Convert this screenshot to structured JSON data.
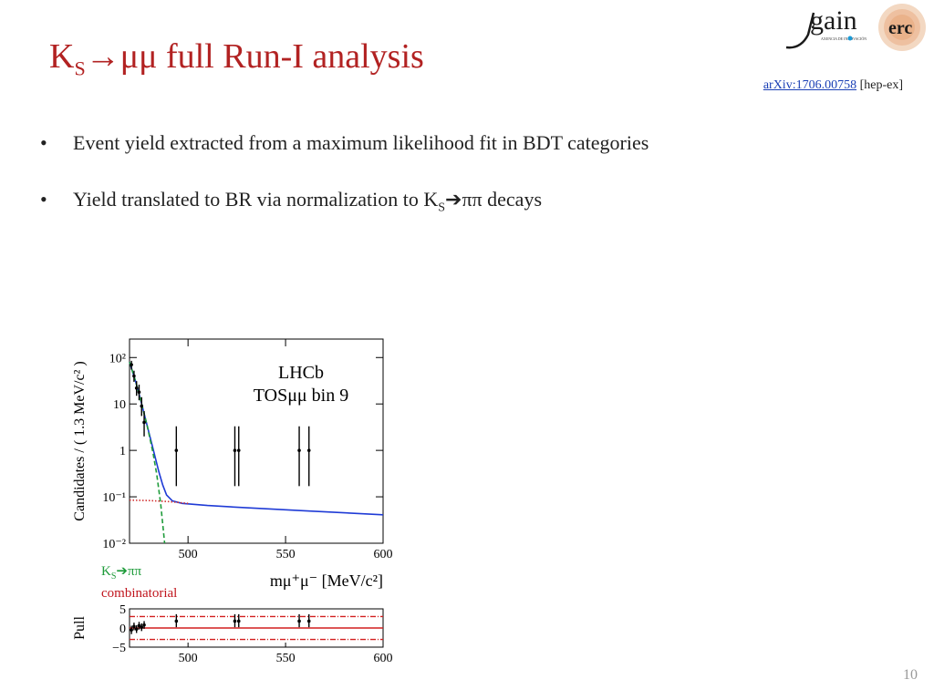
{
  "slide": {
    "title_main": "K",
    "title_sub": "S",
    "title_rest": "→μμ full Run-I analysis",
    "ref_link": "arXiv:1706.00758",
    "ref_suffix": " [hep-ex]",
    "bullets": [
      {
        "text": "Event yield extracted from a maximum likelihood fit in BDT categories"
      },
      {
        "text_pre": "Yield translated to BR via normalization to K",
        "text_sub": "S",
        "text_post": "ππ decays"
      }
    ],
    "page_number": "10"
  },
  "logo": {
    "text_main": "gain",
    "text_small": "AXENCIA DE INNOVACIÓN",
    "badge": "erc"
  },
  "legend": {
    "ks_main": "K",
    "ks_sub": "S",
    "ks_rest": "ππ",
    "comb": "combinatorial",
    "ks_color": "#1e9b3a",
    "comb_color": "#c0141c"
  },
  "chart_data": [
    {
      "type": "scatter",
      "annotation_lines": [
        "LHCb",
        "TOSμμ bin 9"
      ],
      "ylabel": "Candidates / ( 1.3 MeV/c² )",
      "xlabel": "mμ⁺μ⁻ [MeV/c²]",
      "xlim": [
        470,
        600
      ],
      "ylim": [
        0.01,
        250
      ],
      "yscale": "log",
      "x_ticks": [
        "500",
        "550",
        "600"
      ],
      "y_ticks": [
        "10²",
        "10",
        "1",
        "10⁻¹",
        "10⁻²"
      ],
      "y_tick_values": [
        100,
        10,
        1,
        0.1,
        0.01
      ],
      "points": [
        {
          "x": 471,
          "y": 70,
          "lo": 55,
          "hi": 85
        },
        {
          "x": 472.3,
          "y": 40,
          "lo": 30,
          "hi": 52
        },
        {
          "x": 473.6,
          "y": 22,
          "lo": 15,
          "hi": 31
        },
        {
          "x": 474.9,
          "y": 18,
          "lo": 12,
          "hi": 26
        },
        {
          "x": 476.2,
          "y": 9,
          "lo": 5.5,
          "hi": 14
        },
        {
          "x": 477.5,
          "y": 4,
          "lo": 2,
          "hi": 7
        },
        {
          "x": 494,
          "y": 1,
          "lo": 0.17,
          "hi": 3.3
        },
        {
          "x": 524,
          "y": 1,
          "lo": 0.17,
          "hi": 3.3
        },
        {
          "x": 526,
          "y": 1,
          "lo": 0.17,
          "hi": 3.3
        },
        {
          "x": 557,
          "y": 1,
          "lo": 0.17,
          "hi": 3.3
        },
        {
          "x": 562,
          "y": 1,
          "lo": 0.17,
          "hi": 3.3
        }
      ],
      "curves": [
        {
          "name": "total",
          "color": "#1f3bd6",
          "style": "solid",
          "x": [
            470,
            473,
            476,
            479,
            482,
            485,
            487,
            489,
            492,
            497,
            510,
            530,
            560,
            600
          ],
          "y": [
            80,
            32,
            11,
            3.5,
            1.1,
            0.35,
            0.18,
            0.11,
            0.082,
            0.072,
            0.065,
            0.058,
            0.05,
            0.041
          ]
        },
        {
          "name": "KS ππ",
          "color": "#1e9b3a",
          "style": "dashed",
          "x": [
            470,
            473,
            476,
            479,
            482,
            484,
            486,
            488
          ],
          "y": [
            80,
            32,
            11,
            3.5,
            0.9,
            0.3,
            0.07,
            0.01
          ]
        },
        {
          "name": "combinatorial",
          "color": "#d23232",
          "style": "dotted",
          "x": [
            470,
            480,
            490,
            500
          ],
          "y": [
            0.085,
            0.083,
            0.079,
            0.072
          ]
        }
      ]
    },
    {
      "type": "scatter",
      "ylabel": "Pull",
      "xlim": [
        470,
        600
      ],
      "ylim": [
        -5,
        5
      ],
      "x_ticks": [
        "500",
        "550",
        "600"
      ],
      "y_ticks": [
        "5",
        "0",
        "−5"
      ],
      "y_tick_values": [
        5,
        0,
        -5
      ],
      "reference_lines": [
        {
          "y": 0,
          "style": "solid",
          "color": "#d21e1e"
        },
        {
          "y": 3,
          "style": "dashed",
          "color": "#d21e1e"
        },
        {
          "y": -3,
          "style": "dashed",
          "color": "#d21e1e"
        }
      ],
      "points": [
        {
          "x": 471,
          "y": -0.5,
          "lo": -1.6,
          "hi": 0.6
        },
        {
          "x": 472.3,
          "y": 0.4,
          "lo": -0.6,
          "hi": 1.4
        },
        {
          "x": 473.6,
          "y": -0.3,
          "lo": -1.3,
          "hi": 0.7
        },
        {
          "x": 474.9,
          "y": 0.6,
          "lo": -0.4,
          "hi": 1.6
        },
        {
          "x": 476.2,
          "y": 0.2,
          "lo": -0.8,
          "hi": 1.2
        },
        {
          "x": 477.5,
          "y": 0.8,
          "lo": -0.2,
          "hi": 1.8
        },
        {
          "x": 494,
          "y": 1.8,
          "lo": 0.2,
          "hi": 3.6
        },
        {
          "x": 524,
          "y": 1.8,
          "lo": 0.2,
          "hi": 3.6
        },
        {
          "x": 526,
          "y": 1.8,
          "lo": 0.2,
          "hi": 3.6
        },
        {
          "x": 557,
          "y": 1.8,
          "lo": 0.2,
          "hi": 3.6
        },
        {
          "x": 562,
          "y": 1.8,
          "lo": 0.2,
          "hi": 3.6
        }
      ]
    }
  ]
}
